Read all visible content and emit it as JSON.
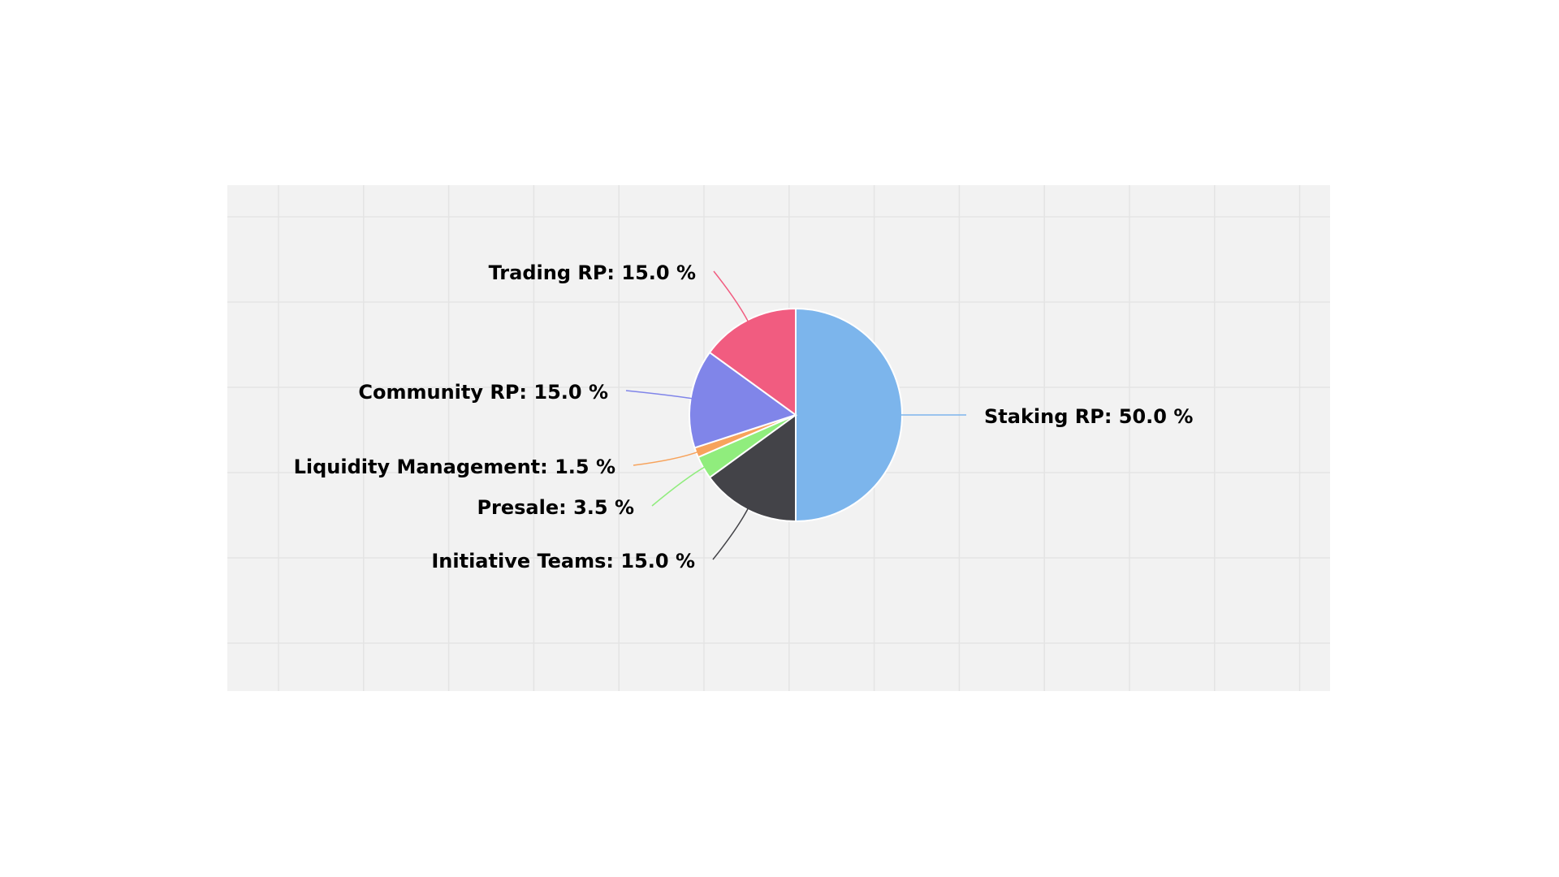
{
  "chart_data": {
    "type": "pie",
    "values": [
      50,
      15,
      3.5,
      1.5,
      15,
      15
    ],
    "value_labels": [
      "Staking RP: 50.0 %",
      "Initiative Teams: 15.0 %",
      "Presale: 3.5 %",
      "Liquidity Management: 1.5 %",
      "Community RP: 15.0 %",
      "Trading RP: 15.0 %"
    ],
    "colors": [
      "#7cb5ec",
      "#434348",
      "#90ed7d",
      "#f7a35c",
      "#8085e9",
      "#f15c80"
    ]
  }
}
